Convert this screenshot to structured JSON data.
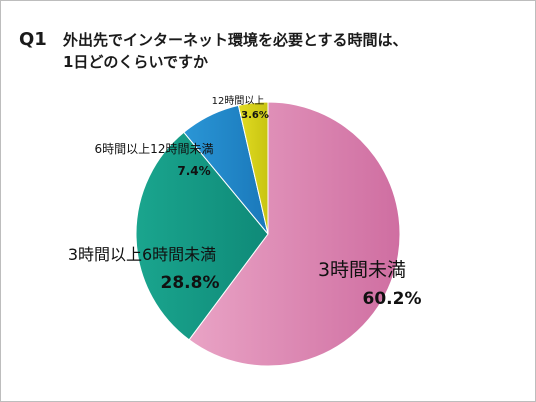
{
  "question": {
    "number": "Q1",
    "line1": "外出先でインターネット環境を必要とする時間は、",
    "line2": "1日どのくらいですか"
  },
  "chart_data": {
    "type": "pie",
    "slices": [
      {
        "label": "3時間未満",
        "value": 60.2,
        "display": "60.2%",
        "color": "#d983ae"
      },
      {
        "label": "3時間以上6時間未満",
        "value": 28.8,
        "display": "28.8%",
        "color": "#1aa08a"
      },
      {
        "label": "6時間以上12時間未満",
        "value": 7.4,
        "display": "7.4%",
        "color": "#1f86c8"
      },
      {
        "label": "12時間以上",
        "value": 3.6,
        "display": "3.6%",
        "color": "#d6d21a"
      }
    ]
  }
}
